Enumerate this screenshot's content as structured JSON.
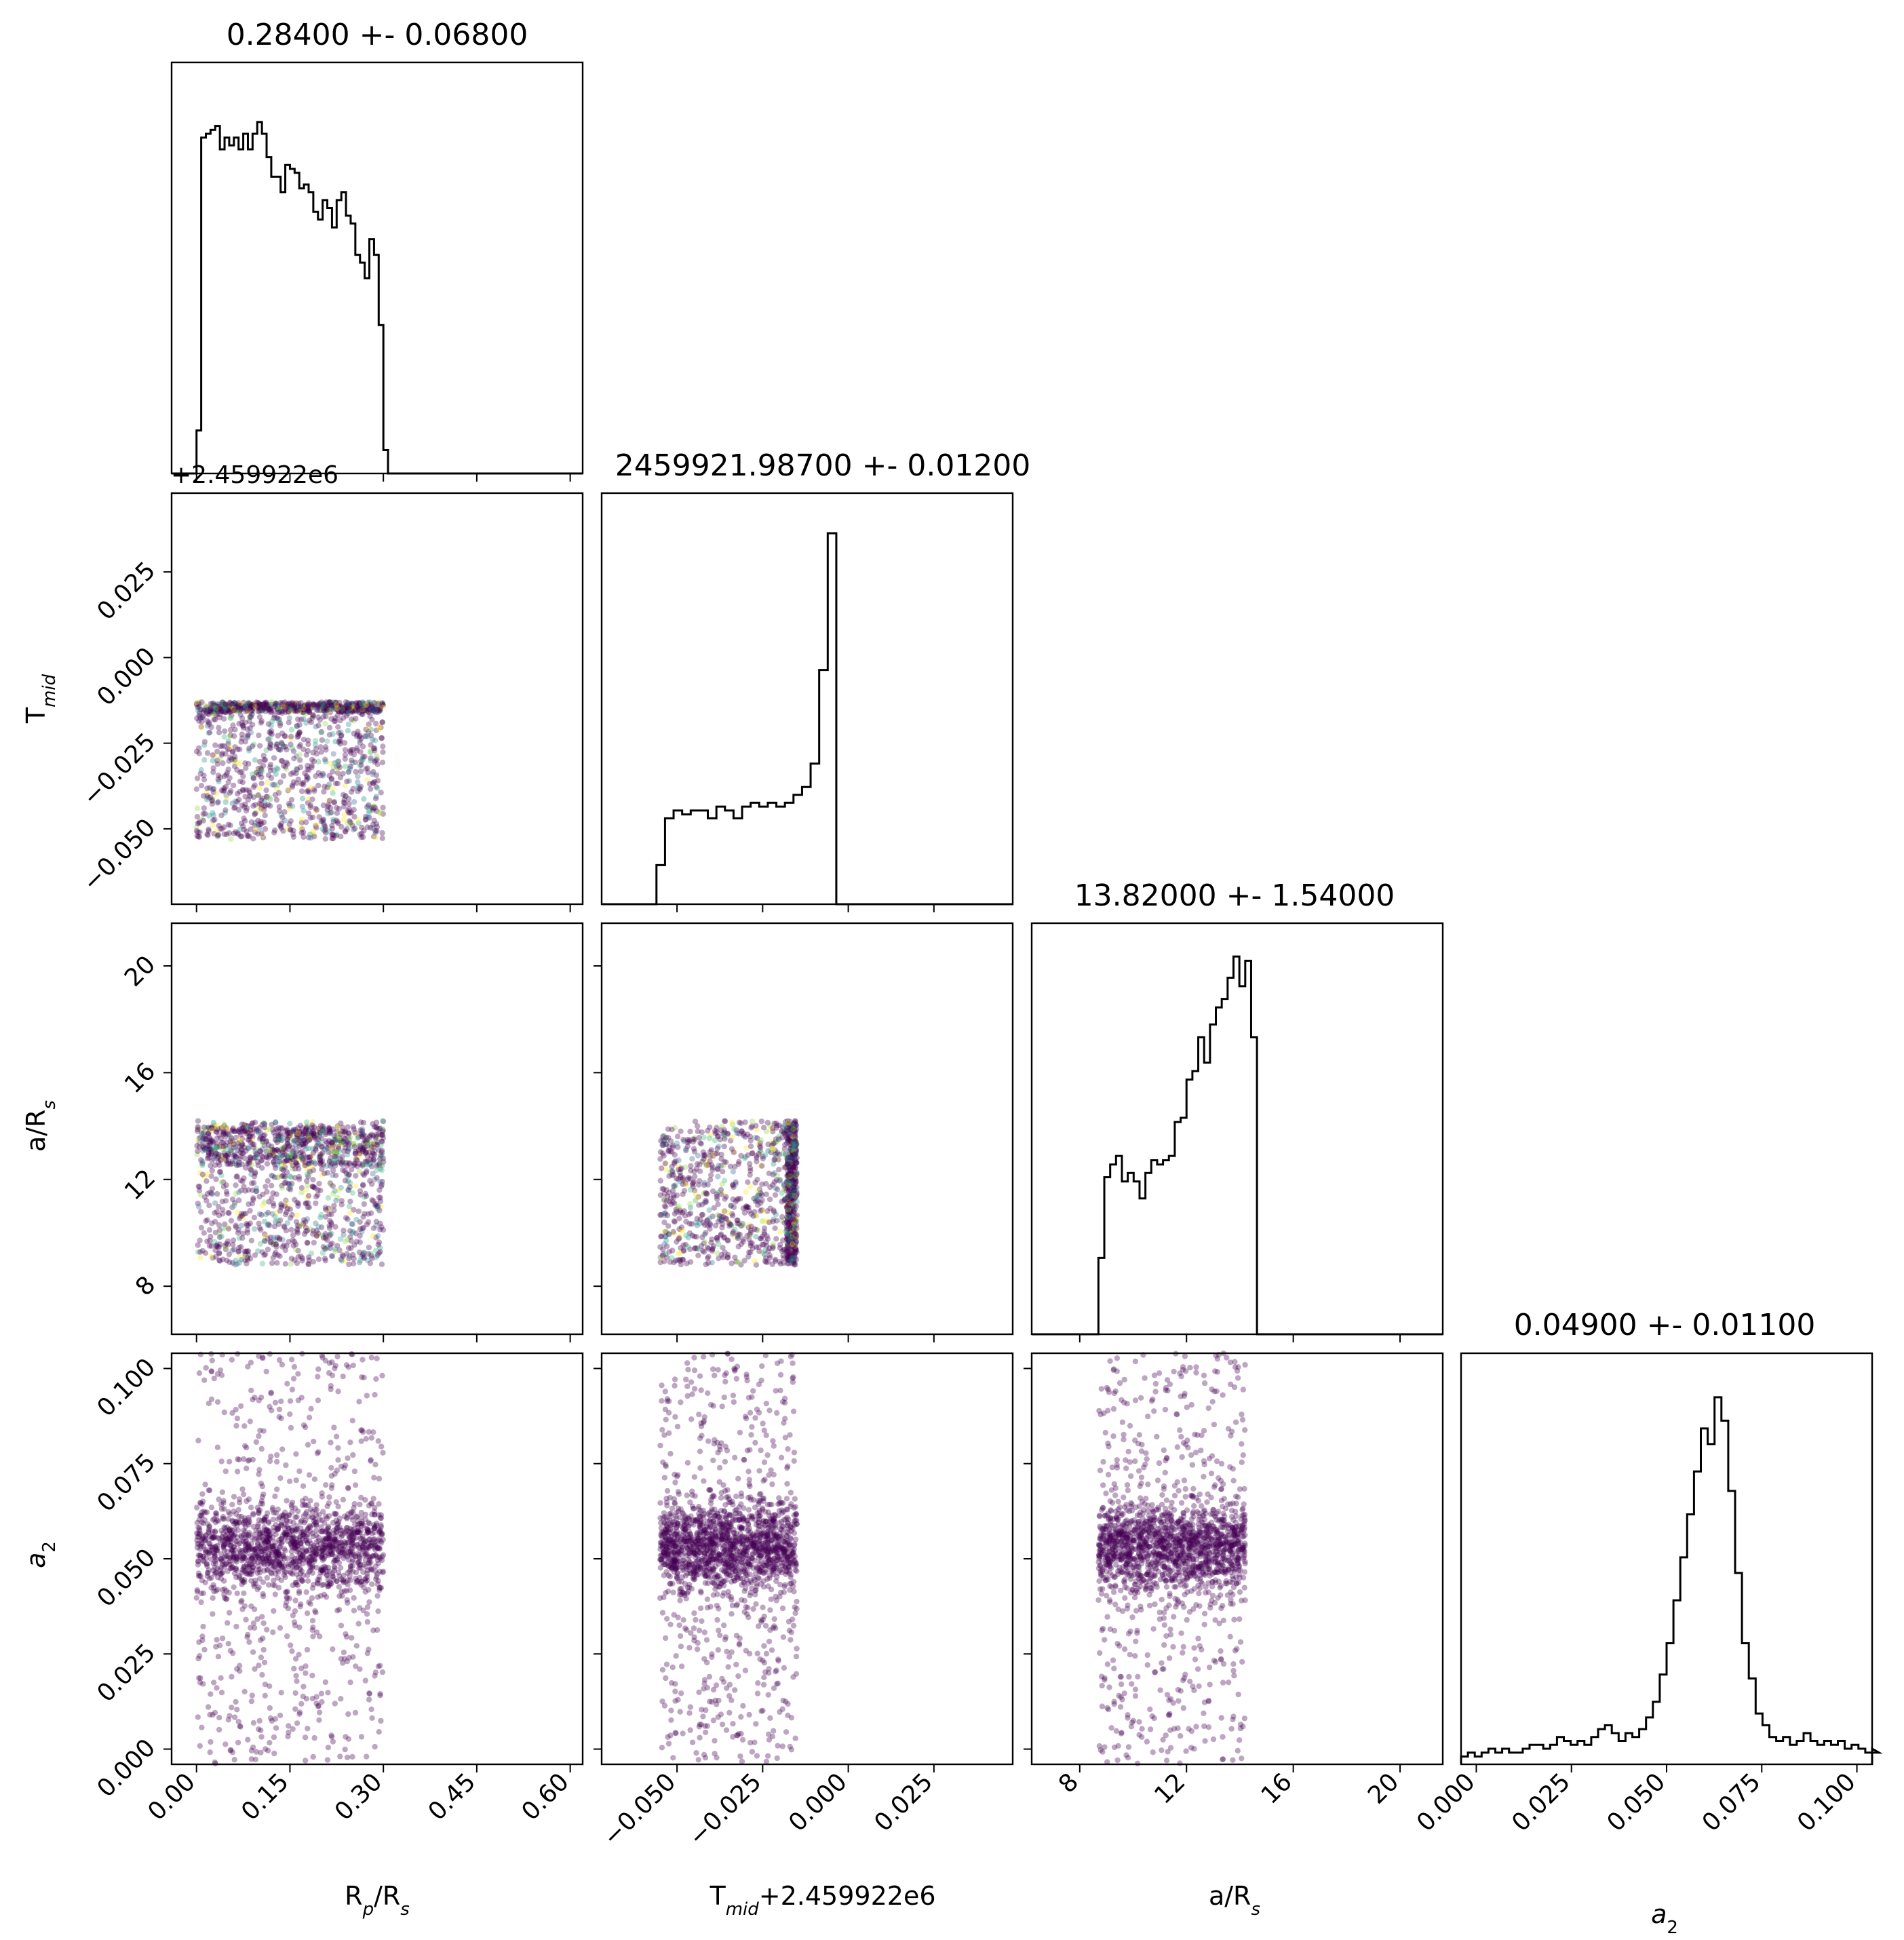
{
  "chart_data": {
    "type": "scatter",
    "layout": "corner-plot",
    "parameters": [
      {
        "key": "rp",
        "label_main": "R",
        "label_sub": "p",
        "label_tail": "/R",
        "label_sub2": "s",
        "range": [
          -0.04,
          0.62
        ],
        "ticks": [
          0.0,
          0.15,
          0.3,
          0.45,
          0.6
        ],
        "tick_labels": [
          "0.00",
          "0.15",
          "0.30",
          "0.45",
          "0.60"
        ]
      },
      {
        "key": "tmid",
        "label_main": "T",
        "label_sub": "mid",
        "label_tail": "+2.459922e6",
        "label_sub2": "",
        "range": [
          -0.072,
          0.048
        ],
        "ticks": [
          -0.05,
          -0.025,
          0.0,
          0.025
        ],
        "tick_labels": [
          "−0.050",
          "−0.025",
          "0.000",
          "0.025"
        ],
        "row_tick_labels": [
          "−0.050",
          "−0.025",
          "0.000",
          "0.025"
        ],
        "ylabel_main": "T",
        "ylabel_sub": "mid",
        "offset_text": "+2.459922e6"
      },
      {
        "key": "ars",
        "label_main": "a/R",
        "label_sub": "s",
        "label_tail": "",
        "label_sub2": "",
        "range": [
          6.2,
          21.6
        ],
        "ticks": [
          8,
          12,
          16,
          20
        ],
        "tick_labels": [
          "8",
          "12",
          "16",
          "20"
        ]
      },
      {
        "key": "a2",
        "label_main": "a",
        "label_sub": "2",
        "label_tail": "",
        "label_sub2": "",
        "range": [
          -0.004,
          0.104
        ],
        "ticks": [
          0.0,
          0.025,
          0.05,
          0.075,
          0.1
        ],
        "tick_labels": [
          "0.000",
          "0.025",
          "0.050",
          "0.075",
          "0.100"
        ]
      }
    ],
    "titles": [
      "0.28400 +- 0.06800",
      "2459921.98700 +- 0.01200",
      "13.82000 +- 1.54000",
      "0.04900 +- 0.01100"
    ],
    "histograms": [
      {
        "param": "rp",
        "bin_start": 0.0,
        "bin_width": 0.0075,
        "counts": [
          0.11,
          0.86,
          0.87,
          0.88,
          0.89,
          0.83,
          0.86,
          0.84,
          0.86,
          0.83,
          0.87,
          0.83,
          0.87,
          0.9,
          0.87,
          0.81,
          0.76,
          0.76,
          0.72,
          0.79,
          0.78,
          0.77,
          0.73,
          0.74,
          0.72,
          0.67,
          0.65,
          0.7,
          0.68,
          0.63,
          0.7,
          0.72,
          0.66,
          0.64,
          0.56,
          0.54,
          0.5,
          0.6,
          0.56,
          0.38,
          0.06,
          0.0
        ],
        "ymax": 1.0
      },
      {
        "param": "tmid",
        "bin_start": -0.056,
        "bin_width": 0.0025,
        "counts": [
          0.1,
          0.22,
          0.24,
          0.23,
          0.24,
          0.24,
          0.22,
          0.25,
          0.24,
          0.22,
          0.25,
          0.26,
          0.25,
          0.26,
          0.25,
          0.26,
          0.28,
          0.3,
          0.36,
          0.6,
          0.95
        ],
        "ymax": 1.0
      },
      {
        "param": "ars",
        "bin_start": 8.7,
        "bin_width": 0.22,
        "counts": [
          0.18,
          0.37,
          0.4,
          0.42,
          0.36,
          0.38,
          0.36,
          0.32,
          0.38,
          0.41,
          0.4,
          0.41,
          0.42,
          0.5,
          0.51,
          0.6,
          0.62,
          0.7,
          0.64,
          0.73,
          0.77,
          0.79,
          0.84,
          0.89,
          0.82,
          0.88,
          0.7,
          0.0
        ],
        "ymax": 0.92
      },
      {
        "param": "a2",
        "bin_start": -0.004,
        "bin_width": 0.0018,
        "counts": [
          0.02,
          0.03,
          0.02,
          0.03,
          0.04,
          0.03,
          0.04,
          0.03,
          0.03,
          0.04,
          0.05,
          0.05,
          0.04,
          0.05,
          0.07,
          0.06,
          0.05,
          0.06,
          0.05,
          0.07,
          0.09,
          0.1,
          0.08,
          0.06,
          0.08,
          0.07,
          0.09,
          0.12,
          0.16,
          0.23,
          0.31,
          0.42,
          0.53,
          0.64,
          0.75,
          0.86,
          0.82,
          0.94,
          0.88,
          0.7,
          0.49,
          0.31,
          0.22,
          0.13,
          0.1,
          0.07,
          0.06,
          0.07,
          0.05,
          0.06,
          0.08,
          0.06,
          0.05,
          0.06,
          0.05,
          0.06,
          0.04,
          0.05,
          0.04,
          0.03,
          0.04,
          0.03
        ],
        "ymax": 1.0
      }
    ],
    "scatter": [
      {
        "x": "rp",
        "y": "tmid",
        "x_range": [
          0.0,
          0.3
        ],
        "y_range": [
          -0.053,
          -0.013
        ],
        "dense_x": [
          0.0,
          0.3
        ],
        "dense_y": [
          -0.016,
          -0.013
        ],
        "n": 1400,
        "multicolor": true
      },
      {
        "x": "rp",
        "y": "ars",
        "x_range": [
          0.0,
          0.3
        ],
        "y_range": [
          8.8,
          14.2
        ],
        "dense_x": [
          0.0,
          0.3
        ],
        "dense_y": [
          12.5,
          14.0
        ],
        "n": 1400,
        "multicolor": true
      },
      {
        "x": "tmid",
        "y": "ars",
        "x_range": [
          -0.055,
          -0.015
        ],
        "y_range": [
          8.8,
          14.2
        ],
        "dense_x": [
          -0.018,
          -0.015
        ],
        "dense_y": [
          8.8,
          14.2
        ],
        "n": 1200,
        "multicolor": true
      },
      {
        "x": "rp",
        "y": "a2",
        "x_range": [
          0.0,
          0.3
        ],
        "y_range": [
          -0.004,
          0.104
        ],
        "center": 0.053,
        "spread": 0.006,
        "n": 1800,
        "multicolor": false
      },
      {
        "x": "tmid",
        "y": "a2",
        "x_range": [
          -0.055,
          -0.015
        ],
        "y_range": [
          -0.004,
          0.104
        ],
        "center": 0.053,
        "spread": 0.006,
        "n": 1800,
        "multicolor": false
      },
      {
        "x": "ars",
        "y": "a2",
        "x_range": [
          8.7,
          14.2
        ],
        "y_range": [
          -0.004,
          0.104
        ],
        "center": 0.053,
        "spread": 0.006,
        "n": 1800,
        "multicolor": false
      }
    ],
    "colors": {
      "scatter_base": "#440154",
      "palette": [
        "#440154",
        "#31688e",
        "#35b779",
        "#fde725",
        "#21918c",
        "#90d743"
      ],
      "hist": "#000000"
    }
  }
}
